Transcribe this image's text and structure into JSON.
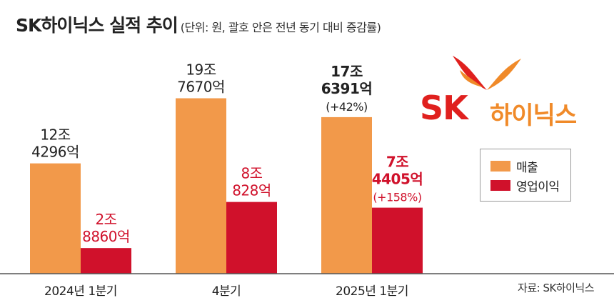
{
  "title": "SK하이닉스 실적 추이",
  "subtitle": "(단위: 원, 괄호 안은 전년 동기 대비 증감률)",
  "logo": {
    "brand": "SK",
    "name": "하이닉스"
  },
  "legend": [
    {
      "name": "매출",
      "color": "#f2994a"
    },
    {
      "name": "영업이익",
      "color": "#d0112b"
    }
  ],
  "source": "자료: SK하이닉스",
  "colors": {
    "revenue": "#f2994a",
    "profit": "#d0112b",
    "profit_text": "#d0112b",
    "revenue_text": "#222222"
  },
  "chart_data": {
    "type": "bar",
    "categories": [
      "2024년 1분기",
      "4분기",
      "2025년 1분기"
    ],
    "series": [
      {
        "name": "매출",
        "values": [
          12.4296,
          19.767,
          17.6391
        ],
        "labels": [
          [
            "12조",
            "4296억"
          ],
          [
            "19조",
            "7670억"
          ],
          [
            "17조",
            "6391억",
            "(+42%)"
          ]
        ]
      },
      {
        "name": "영업이익",
        "values": [
          2.886,
          8.0828,
          7.4405
        ],
        "labels": [
          [
            "2조",
            "8860억"
          ],
          [
            "8조",
            "828억"
          ],
          [
            "7조",
            "4405억",
            "(+158%)"
          ]
        ]
      }
    ],
    "unit": "원",
    "grid": false,
    "legend_position": "right"
  }
}
